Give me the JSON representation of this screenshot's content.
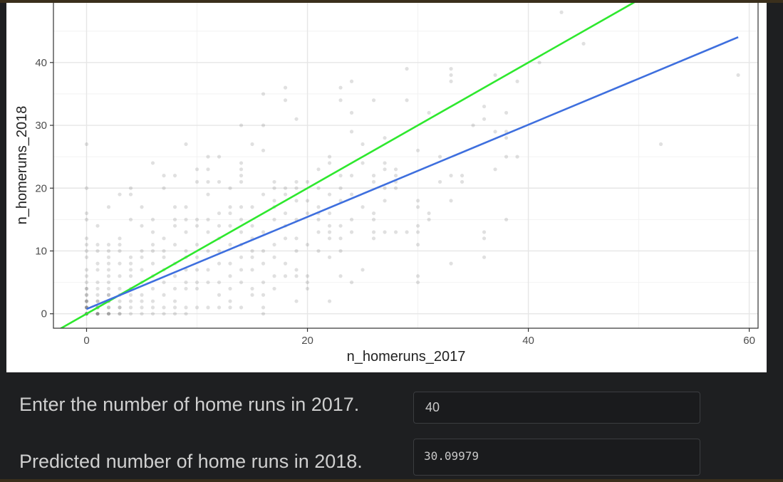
{
  "chart_data": {
    "type": "scatter",
    "xlabel": "n_homeruns_2017",
    "ylabel": "n_homeruns_2018",
    "xlim": [
      -3,
      60.8
    ],
    "ylim": [
      -2.3,
      49.5
    ],
    "xticks": [
      0,
      20,
      40,
      60
    ],
    "yticks": [
      0,
      10,
      20,
      30,
      40
    ],
    "grid": true,
    "point_color": "#000000",
    "point_opacity": 0.12,
    "points": [
      [
        0,
        0
      ],
      [
        0,
        0
      ],
      [
        0,
        0
      ],
      [
        0,
        0
      ],
      [
        0,
        0
      ],
      [
        0,
        1
      ],
      [
        0,
        1
      ],
      [
        0,
        1
      ],
      [
        0,
        1
      ],
      [
        0,
        2
      ],
      [
        0,
        2
      ],
      [
        0,
        2
      ],
      [
        0,
        3
      ],
      [
        0,
        3
      ],
      [
        0,
        4
      ],
      [
        0,
        4
      ],
      [
        0,
        5
      ],
      [
        0,
        6
      ],
      [
        0,
        7
      ],
      [
        0,
        9
      ],
      [
        0,
        10
      ],
      [
        0,
        11
      ],
      [
        0,
        12
      ],
      [
        0,
        15
      ],
      [
        0,
        16
      ],
      [
        0,
        20
      ],
      [
        0,
        27
      ],
      [
        1,
        0
      ],
      [
        1,
        0
      ],
      [
        1,
        0
      ],
      [
        1,
        0
      ],
      [
        1,
        1
      ],
      [
        1,
        1
      ],
      [
        1,
        1
      ],
      [
        1,
        2
      ],
      [
        1,
        2
      ],
      [
        1,
        3
      ],
      [
        1,
        4
      ],
      [
        1,
        5
      ],
      [
        1,
        7
      ],
      [
        1,
        8
      ],
      [
        1,
        10
      ],
      [
        1,
        11
      ],
      [
        1,
        14
      ],
      [
        2,
        0
      ],
      [
        2,
        0
      ],
      [
        2,
        0
      ],
      [
        2,
        1
      ],
      [
        2,
        1
      ],
      [
        2,
        2
      ],
      [
        2,
        2
      ],
      [
        2,
        3
      ],
      [
        2,
        3
      ],
      [
        2,
        4
      ],
      [
        2,
        5
      ],
      [
        2,
        6
      ],
      [
        2,
        7
      ],
      [
        2,
        8
      ],
      [
        2,
        9
      ],
      [
        2,
        10
      ],
      [
        2,
        11
      ],
      [
        2,
        17
      ],
      [
        3,
        0
      ],
      [
        3,
        0
      ],
      [
        3,
        1
      ],
      [
        3,
        1
      ],
      [
        3,
        2
      ],
      [
        3,
        3
      ],
      [
        3,
        4
      ],
      [
        3,
        6
      ],
      [
        3,
        8
      ],
      [
        3,
        10
      ],
      [
        3,
        11
      ],
      [
        3,
        12
      ],
      [
        3,
        19
      ],
      [
        4,
        0
      ],
      [
        4,
        1
      ],
      [
        4,
        2
      ],
      [
        4,
        3
      ],
      [
        4,
        4
      ],
      [
        4,
        6
      ],
      [
        4,
        7
      ],
      [
        4,
        8
      ],
      [
        4,
        9
      ],
      [
        4,
        15
      ],
      [
        4,
        19
      ],
      [
        4,
        20
      ],
      [
        5,
        0
      ],
      [
        5,
        1
      ],
      [
        5,
        2
      ],
      [
        5,
        3
      ],
      [
        5,
        5
      ],
      [
        5,
        7
      ],
      [
        5,
        9
      ],
      [
        5,
        10
      ],
      [
        5,
        14
      ],
      [
        5,
        17
      ],
      [
        6,
        0
      ],
      [
        6,
        1
      ],
      [
        6,
        2
      ],
      [
        6,
        4
      ],
      [
        6,
        6
      ],
      [
        6,
        8
      ],
      [
        6,
        10
      ],
      [
        6,
        11
      ],
      [
        6,
        13
      ],
      [
        6,
        15
      ],
      [
        6,
        24
      ],
      [
        7,
        0
      ],
      [
        7,
        1
      ],
      [
        7,
        3
      ],
      [
        7,
        5
      ],
      [
        7,
        7
      ],
      [
        7,
        9
      ],
      [
        7,
        10
      ],
      [
        7,
        12
      ],
      [
        7,
        20
      ],
      [
        7,
        22
      ],
      [
        8,
        0
      ],
      [
        8,
        1
      ],
      [
        8,
        2
      ],
      [
        8,
        4
      ],
      [
        8,
        6
      ],
      [
        8,
        8
      ],
      [
        8,
        11
      ],
      [
        8,
        14
      ],
      [
        8,
        15
      ],
      [
        8,
        17
      ],
      [
        8,
        22
      ],
      [
        9,
        0
      ],
      [
        9,
        1
      ],
      [
        9,
        4
      ],
      [
        9,
        5
      ],
      [
        9,
        7
      ],
      [
        9,
        9
      ],
      [
        9,
        10
      ],
      [
        9,
        13
      ],
      [
        9,
        15
      ],
      [
        9,
        17
      ],
      [
        9,
        27
      ],
      [
        10,
        1
      ],
      [
        10,
        4
      ],
      [
        10,
        5
      ],
      [
        10,
        7
      ],
      [
        10,
        9
      ],
      [
        10,
        11
      ],
      [
        10,
        14
      ],
      [
        10,
        15
      ],
      [
        10,
        21
      ],
      [
        10,
        23
      ],
      [
        11,
        1
      ],
      [
        11,
        5
      ],
      [
        11,
        7
      ],
      [
        11,
        10
      ],
      [
        11,
        13
      ],
      [
        11,
        15
      ],
      [
        11,
        19
      ],
      [
        11,
        21
      ],
      [
        11,
        23
      ],
      [
        11,
        25
      ],
      [
        12,
        1
      ],
      [
        12,
        3
      ],
      [
        12,
        5
      ],
      [
        12,
        8
      ],
      [
        12,
        10
      ],
      [
        12,
        12
      ],
      [
        12,
        14
      ],
      [
        12,
        16
      ],
      [
        12,
        21
      ],
      [
        12,
        25
      ],
      [
        13,
        1
      ],
      [
        13,
        2
      ],
      [
        13,
        4
      ],
      [
        13,
        6
      ],
      [
        13,
        8
      ],
      [
        13,
        11
      ],
      [
        13,
        14
      ],
      [
        13,
        16
      ],
      [
        13,
        17
      ],
      [
        13,
        20
      ],
      [
        14,
        1
      ],
      [
        14,
        5
      ],
      [
        14,
        7
      ],
      [
        14,
        9
      ],
      [
        14,
        11
      ],
      [
        14,
        13
      ],
      [
        14,
        15
      ],
      [
        14,
        17
      ],
      [
        14,
        21
      ],
      [
        14,
        22
      ],
      [
        14,
        23
      ],
      [
        14,
        24
      ],
      [
        14,
        30
      ],
      [
        15,
        3
      ],
      [
        15,
        4
      ],
      [
        15,
        7
      ],
      [
        15,
        9
      ],
      [
        15,
        10
      ],
      [
        15,
        12
      ],
      [
        15,
        14
      ],
      [
        15,
        17
      ],
      [
        15,
        27
      ],
      [
        16,
        0
      ],
      [
        16,
        1
      ],
      [
        16,
        3
      ],
      [
        16,
        5
      ],
      [
        16,
        8
      ],
      [
        16,
        10
      ],
      [
        16,
        13
      ],
      [
        16,
        19
      ],
      [
        16,
        26
      ],
      [
        16,
        30
      ],
      [
        16,
        35
      ],
      [
        17,
        4
      ],
      [
        17,
        6
      ],
      [
        17,
        9
      ],
      [
        17,
        11
      ],
      [
        17,
        15
      ],
      [
        17,
        17
      ],
      [
        17,
        18
      ],
      [
        17,
        20
      ],
      [
        17,
        21
      ],
      [
        18,
        6
      ],
      [
        18,
        8
      ],
      [
        18,
        12
      ],
      [
        18,
        14
      ],
      [
        18,
        16
      ],
      [
        18,
        19
      ],
      [
        18,
        20
      ],
      [
        18,
        34
      ],
      [
        18,
        36
      ],
      [
        19,
        2
      ],
      [
        19,
        6
      ],
      [
        19,
        7
      ],
      [
        19,
        10
      ],
      [
        19,
        12
      ],
      [
        19,
        15
      ],
      [
        19,
        18
      ],
      [
        19,
        20
      ],
      [
        19,
        21
      ],
      [
        19,
        31
      ],
      [
        20,
        4
      ],
      [
        20,
        5
      ],
      [
        20,
        6
      ],
      [
        20,
        11
      ],
      [
        20,
        16
      ],
      [
        20,
        18
      ],
      [
        20,
        21
      ],
      [
        21,
        10
      ],
      [
        21,
        13
      ],
      [
        21,
        15
      ],
      [
        21,
        16
      ],
      [
        21,
        17
      ],
      [
        21,
        20
      ],
      [
        21,
        23
      ],
      [
        22,
        2
      ],
      [
        22,
        9
      ],
      [
        22,
        12
      ],
      [
        22,
        13
      ],
      [
        22,
        14
      ],
      [
        22,
        16
      ],
      [
        22,
        19
      ],
      [
        22,
        24
      ],
      [
        22,
        25
      ],
      [
        23,
        6
      ],
      [
        23,
        10
      ],
      [
        23,
        12
      ],
      [
        23,
        14
      ],
      [
        23,
        18
      ],
      [
        23,
        20
      ],
      [
        23,
        22
      ],
      [
        23,
        34
      ],
      [
        23,
        36
      ],
      [
        24,
        5
      ],
      [
        24,
        13
      ],
      [
        24,
        15
      ],
      [
        24,
        19
      ],
      [
        24,
        22
      ],
      [
        24,
        29
      ],
      [
        24,
        32
      ],
      [
        24,
        37
      ],
      [
        25,
        7
      ],
      [
        25,
        17
      ],
      [
        25,
        24
      ],
      [
        25,
        27
      ],
      [
        26,
        12
      ],
      [
        26,
        13
      ],
      [
        26,
        15
      ],
      [
        26,
        16
      ],
      [
        26,
        21
      ],
      [
        26,
        22
      ],
      [
        26,
        34
      ],
      [
        27,
        13
      ],
      [
        27,
        18
      ],
      [
        27,
        20
      ],
      [
        27,
        23
      ],
      [
        27,
        24
      ],
      [
        27,
        28
      ],
      [
        28,
        13
      ],
      [
        28,
        20
      ],
      [
        28,
        21
      ],
      [
        28,
        22
      ],
      [
        28,
        23
      ],
      [
        29,
        13
      ],
      [
        29,
        34
      ],
      [
        29,
        39
      ],
      [
        30,
        5
      ],
      [
        30,
        6
      ],
      [
        30,
        11
      ],
      [
        30,
        13
      ],
      [
        30,
        14
      ],
      [
        30,
        17
      ],
      [
        30,
        18
      ],
      [
        30,
        26
      ],
      [
        31,
        15
      ],
      [
        31,
        16
      ],
      [
        31,
        32
      ],
      [
        32,
        21
      ],
      [
        32,
        25
      ],
      [
        33,
        8
      ],
      [
        33,
        18
      ],
      [
        33,
        22
      ],
      [
        33,
        37
      ],
      [
        33,
        38
      ],
      [
        33,
        39
      ],
      [
        34,
        21
      ],
      [
        34,
        22
      ],
      [
        35,
        30
      ],
      [
        36,
        9
      ],
      [
        36,
        12
      ],
      [
        36,
        13
      ],
      [
        36,
        31
      ],
      [
        36,
        33
      ],
      [
        37,
        23
      ],
      [
        37,
        29
      ],
      [
        37,
        38
      ],
      [
        38,
        15
      ],
      [
        38,
        25
      ],
      [
        38,
        28
      ],
      [
        38,
        29
      ],
      [
        38,
        32
      ],
      [
        39,
        25
      ],
      [
        39,
        37
      ],
      [
        41,
        40
      ],
      [
        43,
        48
      ],
      [
        45,
        43
      ],
      [
        52,
        27
      ],
      [
        59,
        38
      ]
    ],
    "lines": [
      {
        "color": "#2ee82e",
        "intercept": 0,
        "slope": 1
      },
      {
        "color": "#3e6fde",
        "intercept": 0.75,
        "slope": 0.7337,
        "x_range": [
          0,
          59
        ]
      }
    ]
  },
  "form": {
    "input_label": "Enter the number of home runs in 2017.",
    "input_value": "40",
    "output_label": "Predicted number of home runs in 2018.",
    "output_value": "30.09979"
  }
}
